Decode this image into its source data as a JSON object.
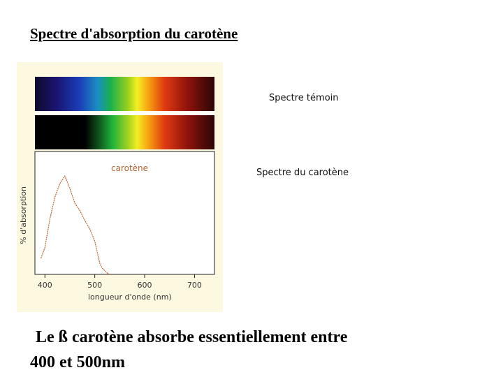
{
  "title": "Spectre d'absorption du carotène",
  "labels": {
    "reference_spectrum": "Spectre témoin",
    "carotene_spectrum": "Spectre du carotène"
  },
  "chart_data": {
    "type": "line",
    "ylabel": "% d'absorption",
    "xlabel": "longueur d'onde (nm)",
    "xticks": [
      "400",
      "500",
      "600",
      "700"
    ],
    "xlim": [
      380,
      740
    ],
    "ylim": [
      0,
      100
    ],
    "series": [
      {
        "name": "carotène",
        "color": "#b8632e",
        "x": [
          392,
          400,
          410,
          420,
          430,
          440,
          450,
          460,
          470,
          475,
          480,
          490,
          500,
          505,
          510,
          515,
          520,
          525,
          530
        ],
        "y": [
          13,
          22,
          45,
          63,
          74,
          80,
          70,
          58,
          52,
          48,
          44,
          37,
          27,
          18,
          9,
          5,
          3,
          1,
          0
        ]
      }
    ]
  },
  "colors": {
    "panel_bg": "#fdf9e1",
    "curve": "#b8632e"
  },
  "conclusion": {
    "line1": "Le ß carotène absorbe essentiellement entre",
    "line2": "400 et 500nm"
  }
}
